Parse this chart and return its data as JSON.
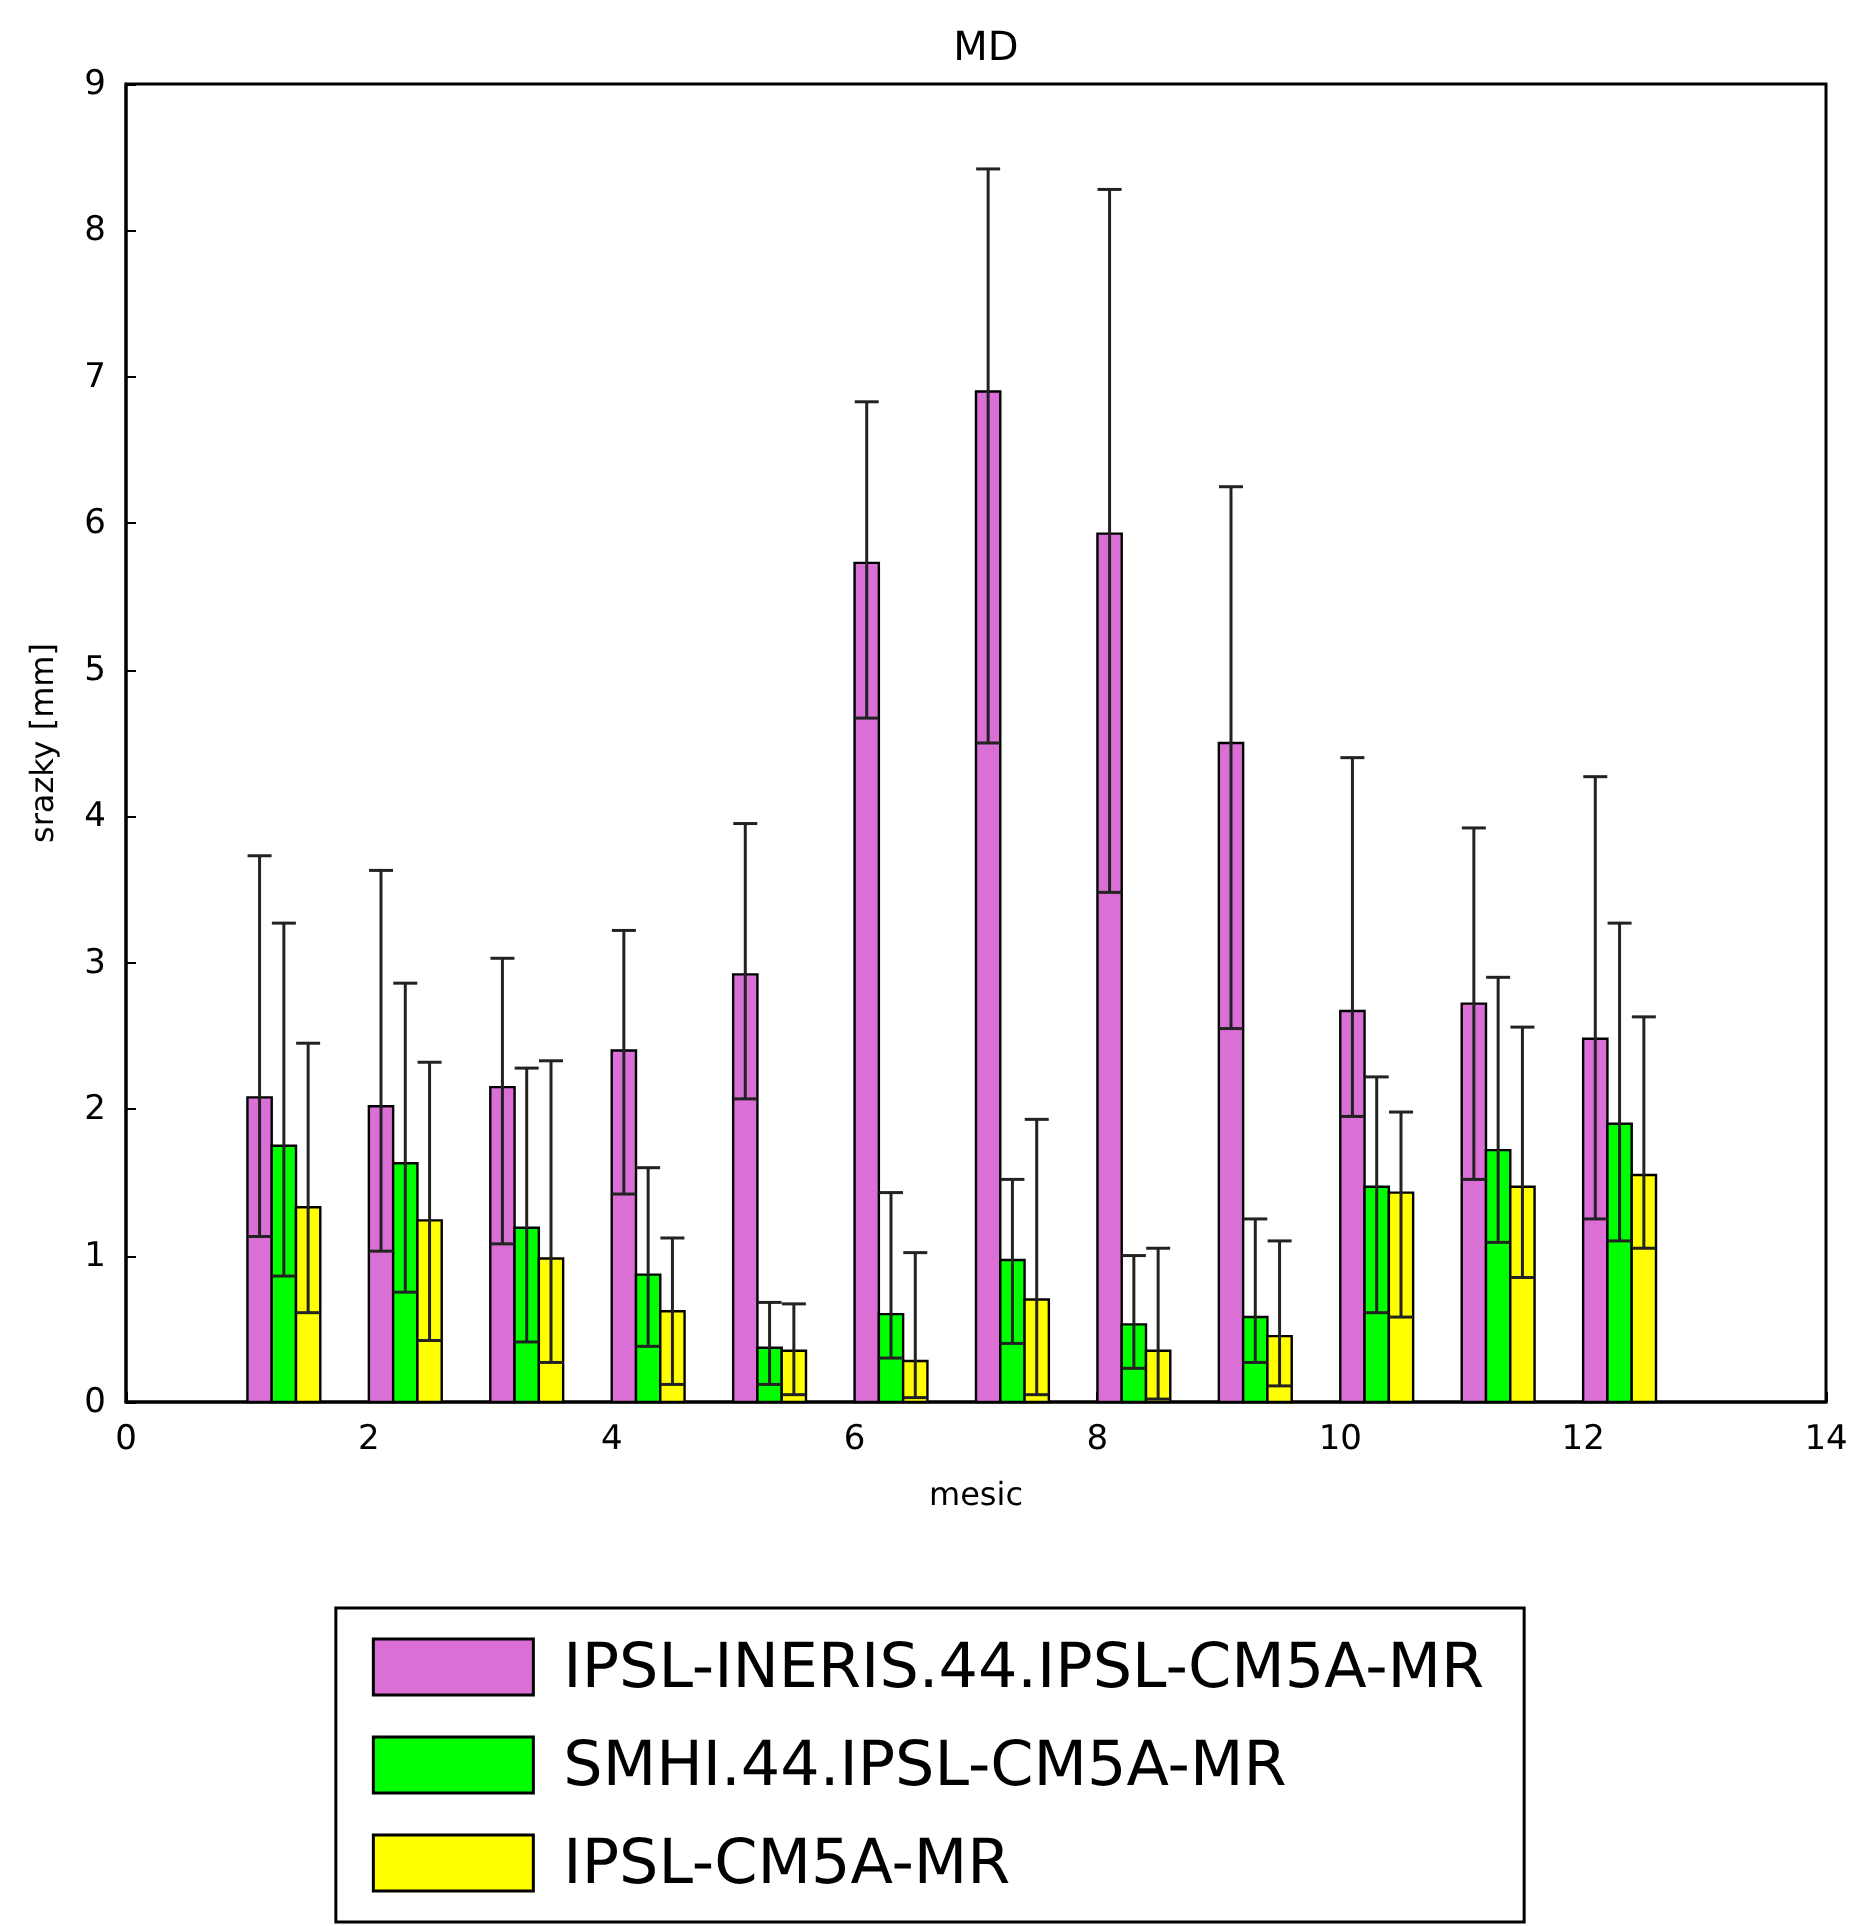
{
  "chart_data": {
    "type": "bar",
    "title": "MD",
    "xlabel": "mesic",
    "ylabel": "srazky [mm]",
    "xlim": [
      0,
      14
    ],
    "xticks": [
      0,
      2,
      4,
      6,
      8,
      10,
      12,
      14
    ],
    "ylim": [
      0,
      9
    ],
    "yticks": [
      0,
      1,
      2,
      3,
      4,
      5,
      6,
      7,
      8,
      9
    ],
    "grid": false,
    "legend": "bottom",
    "series": [
      {
        "name": "IPSL-INERIS.44.IPSL-CM5A-MR",
        "color": "#da70d6",
        "x": [
          1.1,
          2.1,
          3.1,
          4.1,
          5.1,
          6.1,
          7.1,
          8.1,
          9.1,
          10.1,
          11.1,
          12.1
        ],
        "values": [
          2.08,
          2.02,
          2.15,
          2.4,
          2.92,
          5.73,
          6.9,
          5.93,
          4.5,
          2.67,
          2.72,
          2.48
        ],
        "errors": [
          [
            1.13,
            3.73
          ],
          [
            1.03,
            3.63
          ],
          [
            1.08,
            3.03
          ],
          [
            1.42,
            3.22
          ],
          [
            2.07,
            3.95
          ],
          [
            4.67,
            6.83
          ],
          [
            4.5,
            8.42
          ],
          [
            3.48,
            8.28
          ],
          [
            2.55,
            6.25
          ],
          [
            1.95,
            4.4
          ],
          [
            1.52,
            3.92
          ],
          [
            1.25,
            4.27
          ]
        ]
      },
      {
        "name": "SMHI.44.IPSL-CM5A-MR",
        "color": "#00ff00",
        "x": [
          1.3,
          2.3,
          3.3,
          4.3,
          5.3,
          6.3,
          7.3,
          8.3,
          9.3,
          10.3,
          11.3,
          12.3
        ],
        "values": [
          1.75,
          1.63,
          1.19,
          0.87,
          0.37,
          0.6,
          0.97,
          0.53,
          0.58,
          1.47,
          1.72,
          1.9
        ],
        "errors": [
          [
            0.86,
            3.27
          ],
          [
            0.75,
            2.86
          ],
          [
            0.41,
            2.28
          ],
          [
            0.38,
            1.6
          ],
          [
            0.12,
            0.68
          ],
          [
            0.3,
            1.43
          ],
          [
            0.4,
            1.52
          ],
          [
            0.23,
            1.0
          ],
          [
            0.27,
            1.25
          ],
          [
            0.61,
            2.22
          ],
          [
            1.09,
            2.9
          ],
          [
            1.1,
            3.27
          ]
        ]
      },
      {
        "name": "IPSL-CM5A-MR",
        "color": "#ffff00",
        "x": [
          1.5,
          2.5,
          3.5,
          4.5,
          5.5,
          6.5,
          7.5,
          8.5,
          9.5,
          10.5,
          11.5,
          12.5
        ],
        "values": [
          1.33,
          1.24,
          0.98,
          0.62,
          0.35,
          0.28,
          0.7,
          0.35,
          0.45,
          1.43,
          1.47,
          1.55
        ],
        "errors": [
          [
            0.61,
            2.45
          ],
          [
            0.42,
            2.32
          ],
          [
            0.27,
            2.33
          ],
          [
            0.12,
            1.12
          ],
          [
            0.05,
            0.67
          ],
          [
            0.03,
            1.02
          ],
          [
            0.05,
            1.93
          ],
          [
            0.02,
            1.05
          ],
          [
            0.11,
            1.1
          ],
          [
            0.58,
            1.98
          ],
          [
            0.85,
            2.56
          ],
          [
            1.05,
            2.63
          ]
        ]
      }
    ]
  }
}
